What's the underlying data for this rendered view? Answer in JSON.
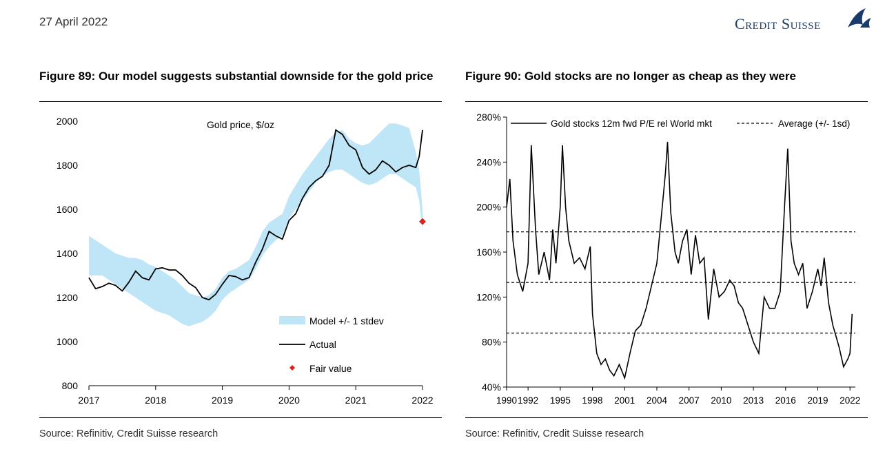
{
  "header": {
    "date": "27 April 2022",
    "brand": "Credit Suisse"
  },
  "figures": [
    {
      "title": "Figure 89: Our model suggests substantial downside for the gold price",
      "source": "Source: Refinitiv, Credit Suisse research"
    },
    {
      "title": "Figure 90: Gold stocks are no longer as cheap as they were",
      "source": "Source: Refinitiv, Credit Suisse research"
    }
  ],
  "chart_data": [
    {
      "type": "line",
      "title": "Gold price, $/oz",
      "x_ticks": [
        "2017",
        "2018",
        "2019",
        "2020",
        "2021",
        "2022"
      ],
      "y_ticks": [
        "800",
        "1000",
        "1200",
        "1400",
        "1600",
        "1800",
        "2000"
      ],
      "xlim": [
        2017,
        2022
      ],
      "ylim": [
        800,
        2000
      ],
      "legend": {
        "band": "Model +/- 1 stdev",
        "line": "Actual",
        "point": "Fair value",
        "placement": "bottom-right"
      },
      "colors": {
        "band": "#bfe6f7",
        "line": "#000000",
        "point": "#e0201b"
      },
      "series": [
        {
          "name": "Actual",
          "x": [
            2017.0,
            2017.1,
            2017.2,
            2017.3,
            2017.4,
            2017.5,
            2017.6,
            2017.7,
            2017.8,
            2017.9,
            2018.0,
            2018.1,
            2018.2,
            2018.3,
            2018.4,
            2018.5,
            2018.6,
            2018.7,
            2018.8,
            2018.9,
            2019.0,
            2019.1,
            2019.2,
            2019.3,
            2019.4,
            2019.5,
            2019.6,
            2019.7,
            2019.8,
            2019.9,
            2020.0,
            2020.1,
            2020.2,
            2020.3,
            2020.4,
            2020.5,
            2020.6,
            2020.7,
            2020.8,
            2020.9,
            2021.0,
            2021.1,
            2021.2,
            2021.3,
            2021.4,
            2021.5,
            2021.6,
            2021.7,
            2021.8,
            2021.9,
            2021.95,
            2022.0
          ],
          "y": [
            1290,
            1240,
            1250,
            1265,
            1255,
            1230,
            1270,
            1320,
            1290,
            1280,
            1330,
            1335,
            1325,
            1325,
            1300,
            1265,
            1245,
            1200,
            1190,
            1215,
            1260,
            1300,
            1295,
            1280,
            1290,
            1360,
            1420,
            1500,
            1480,
            1465,
            1550,
            1580,
            1650,
            1700,
            1730,
            1750,
            1800,
            1960,
            1940,
            1890,
            1870,
            1790,
            1760,
            1780,
            1820,
            1800,
            1770,
            1790,
            1800,
            1790,
            1840,
            1960
          ]
        },
        {
          "name": "Model upper",
          "x": [
            2017.0,
            2017.1,
            2017.2,
            2017.3,
            2017.4,
            2017.5,
            2017.6,
            2017.7,
            2017.8,
            2017.9,
            2018.0,
            2018.1,
            2018.2,
            2018.3,
            2018.4,
            2018.5,
            2018.6,
            2018.7,
            2018.8,
            2018.9,
            2019.0,
            2019.1,
            2019.2,
            2019.3,
            2019.4,
            2019.5,
            2019.6,
            2019.7,
            2019.8,
            2019.9,
            2020.0,
            2020.1,
            2020.2,
            2020.3,
            2020.4,
            2020.5,
            2020.6,
            2020.7,
            2020.8,
            2020.9,
            2021.0,
            2021.1,
            2021.2,
            2021.3,
            2021.4,
            2021.5,
            2021.6,
            2021.7,
            2021.8,
            2021.9,
            2021.95,
            2022.0
          ],
          "y": [
            1480,
            1460,
            1440,
            1420,
            1400,
            1390,
            1380,
            1380,
            1370,
            1350,
            1340,
            1320,
            1300,
            1280,
            1250,
            1220,
            1210,
            1200,
            1210,
            1240,
            1290,
            1320,
            1330,
            1350,
            1370,
            1430,
            1500,
            1540,
            1560,
            1580,
            1660,
            1710,
            1760,
            1800,
            1840,
            1880,
            1920,
            1950,
            1960,
            1920,
            1900,
            1890,
            1900,
            1930,
            1960,
            1990,
            1990,
            1980,
            1970,
            1860,
            1780,
            1600
          ]
        },
        {
          "name": "Model lower",
          "x": [
            2017.0,
            2017.1,
            2017.2,
            2017.3,
            2017.4,
            2017.5,
            2017.6,
            2017.7,
            2017.8,
            2017.9,
            2018.0,
            2018.1,
            2018.2,
            2018.3,
            2018.4,
            2018.5,
            2018.6,
            2018.7,
            2018.8,
            2018.9,
            2019.0,
            2019.1,
            2019.2,
            2019.3,
            2019.4,
            2019.5,
            2019.6,
            2019.7,
            2019.8,
            2019.9,
            2020.0,
            2020.1,
            2020.2,
            2020.3,
            2020.4,
            2020.5,
            2020.6,
            2020.7,
            2020.8,
            2020.9,
            2021.0,
            2021.1,
            2021.2,
            2021.3,
            2021.4,
            2021.5,
            2021.6,
            2021.7,
            2021.8,
            2021.9,
            2021.95,
            2022.0
          ],
          "y": [
            1300,
            1300,
            1300,
            1280,
            1260,
            1240,
            1220,
            1200,
            1180,
            1160,
            1140,
            1130,
            1120,
            1100,
            1080,
            1070,
            1080,
            1090,
            1110,
            1140,
            1190,
            1220,
            1240,
            1260,
            1280,
            1330,
            1390,
            1430,
            1460,
            1480,
            1560,
            1600,
            1640,
            1680,
            1720,
            1750,
            1770,
            1780,
            1780,
            1760,
            1740,
            1720,
            1710,
            1720,
            1740,
            1760,
            1760,
            1740,
            1720,
            1700,
            1640,
            1500
          ]
        },
        {
          "name": "Fair value",
          "x": [
            2022.0
          ],
          "y": [
            1545
          ]
        }
      ]
    },
    {
      "type": "line",
      "x_ticks": [
        "1990",
        "1992",
        "1995",
        "1998",
        "2001",
        "2004",
        "2007",
        "2010",
        "2013",
        "2016",
        "2019",
        "2022"
      ],
      "y_ticks": [
        "40%",
        "80%",
        "120%",
        "160%",
        "200%",
        "240%",
        "280%"
      ],
      "xlim": [
        1990,
        2022.5
      ],
      "ylim": [
        40,
        280
      ],
      "legend": {
        "line": "Gold stocks 12m fwd P/E rel World mkt",
        "dashed": "Average (+/- 1sd)",
        "placement": "top"
      },
      "reference_lines": [
        178,
        133,
        88
      ],
      "series": [
        {
          "name": "Gold stocks 12m fwd P/E rel World mkt",
          "x": [
            1990.0,
            1990.3,
            1990.6,
            1991.0,
            1991.5,
            1992.0,
            1992.3,
            1992.7,
            1993.0,
            1993.5,
            1994.0,
            1994.3,
            1994.6,
            1995.0,
            1995.2,
            1995.5,
            1995.8,
            1996.3,
            1996.8,
            1997.3,
            1997.8,
            1998.0,
            1998.4,
            1998.8,
            1999.2,
            1999.6,
            2000.0,
            2000.5,
            2001.0,
            2001.5,
            2002.0,
            2002.5,
            2003.0,
            2003.5,
            2004.0,
            2004.5,
            2004.8,
            2005.0,
            2005.3,
            2005.7,
            2006.0,
            2006.4,
            2006.8,
            2007.2,
            2007.6,
            2008.0,
            2008.4,
            2008.8,
            2009.3,
            2009.8,
            2010.3,
            2010.8,
            2011.2,
            2011.6,
            2012.0,
            2012.5,
            2013.0,
            2013.5,
            2014.0,
            2014.5,
            2015.0,
            2015.5,
            2015.9,
            2016.2,
            2016.5,
            2016.8,
            2017.2,
            2017.6,
            2018.0,
            2018.5,
            2019.0,
            2019.3,
            2019.6,
            2020.0,
            2020.4,
            2020.7,
            2021.0,
            2021.4,
            2021.8,
            2022.0,
            2022.2
          ],
          "y": [
            200,
            225,
            170,
            140,
            125,
            150,
            255,
            180,
            140,
            160,
            135,
            180,
            150,
            200,
            255,
            200,
            170,
            150,
            155,
            145,
            165,
            105,
            70,
            60,
            65,
            55,
            50,
            60,
            48,
            70,
            90,
            95,
            110,
            130,
            150,
            200,
            230,
            258,
            195,
            160,
            150,
            170,
            180,
            140,
            175,
            150,
            155,
            100,
            145,
            120,
            125,
            135,
            130,
            115,
            110,
            95,
            80,
            70,
            120,
            110,
            110,
            125,
            200,
            252,
            170,
            150,
            140,
            150,
            110,
            125,
            145,
            130,
            155,
            115,
            95,
            85,
            75,
            58,
            65,
            70,
            105
          ]
        },
        {
          "name": "Average (+/- 1sd)",
          "x": [
            1990,
            2022.5
          ],
          "y": [
            133,
            133
          ]
        }
      ]
    }
  ]
}
